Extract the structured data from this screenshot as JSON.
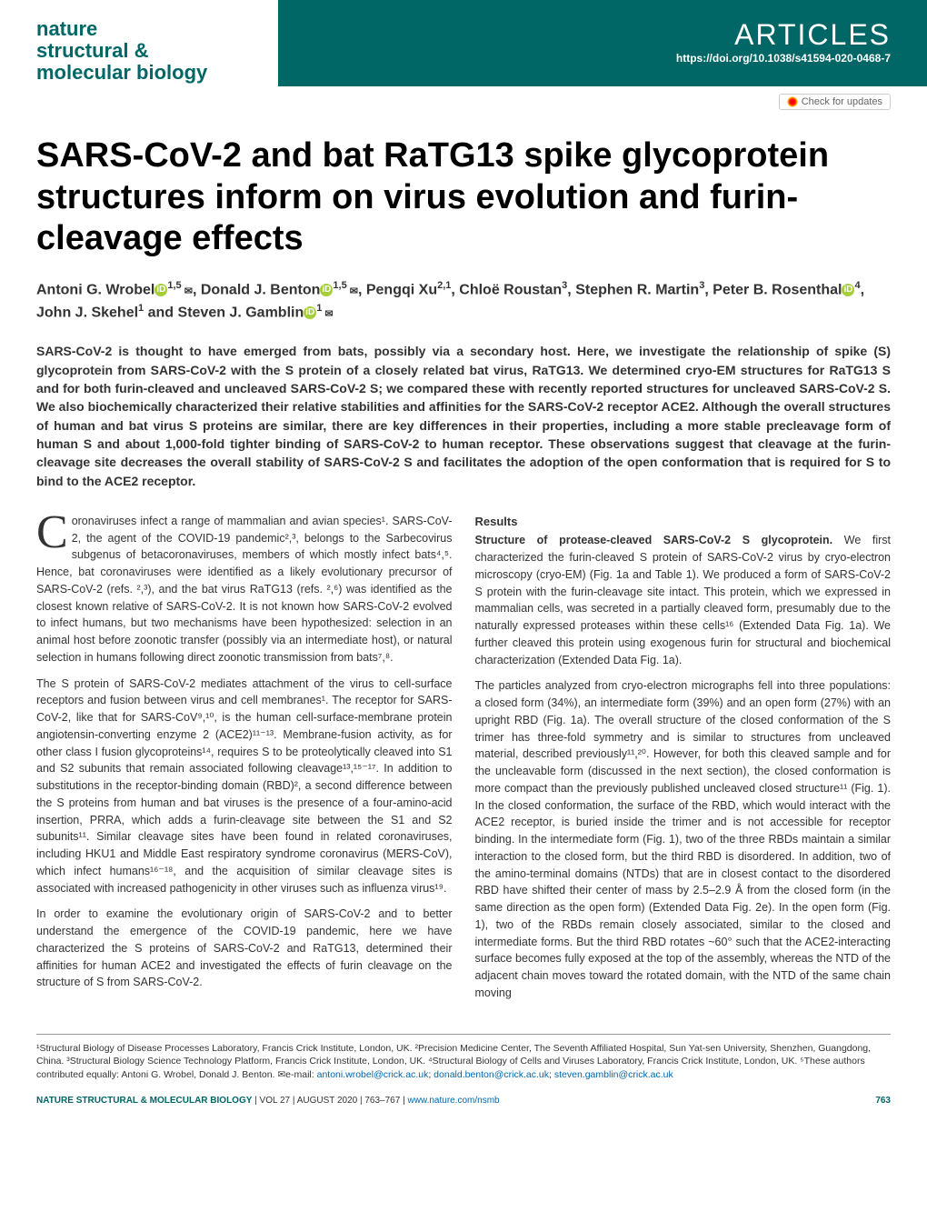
{
  "header": {
    "journal_name": "nature\nstructural &\nmolecular biology",
    "articles_label": "ARTICLES",
    "doi": "https://doi.org/10.1038/s41594-020-0468-7"
  },
  "check_updates_label": "Check for updates",
  "title": "SARS-CoV-2 and bat RaTG13 spike glycoprotein structures inform on virus evolution and furin-cleavage effects",
  "authors_html": "Antoni G. Wrobel",
  "authors": {
    "a1_name": "Antoni G. Wrobel",
    "a1_sup": "1,5",
    "a2_name": "Donald J. Benton",
    "a2_sup": "1,5",
    "a3_name": "Pengqi Xu",
    "a3_sup": "2,1",
    "a4_name": "Chloë Roustan",
    "a4_sup": "3",
    "a5_name": "Stephen R. Martin",
    "a5_sup": "3",
    "a6_name": "Peter B. Rosenthal",
    "a6_sup": "4",
    "a7_name": "John J. Skehel",
    "a7_sup": "1",
    "a8_name": "Steven J. Gamblin",
    "a8_sup": "1"
  },
  "abstract": "SARS-CoV-2 is thought to have emerged from bats, possibly via a secondary host. Here, we investigate the relationship of spike (S) glycoprotein from SARS-CoV-2 with the S protein of a closely related bat virus, RaTG13. We determined cryo-EM structures for RaTG13 S and for both furin-cleaved and uncleaved SARS-CoV-2 S; we compared these with recently reported structures for uncleaved SARS-CoV-2 S. We also biochemically characterized their relative stabilities and affinities for the SARS-CoV-2 receptor ACE2. Although the overall structures of human and bat virus S proteins are similar, there are key differences in their properties, including a more stable precleavage form of human S and about 1,000-fold tighter binding of SARS-CoV-2 to human receptor. These observations suggest that cleavage at the furin-cleavage site decreases the overall stability of SARS-CoV-2 S and facilitates the adoption of the open conformation that is required for S to bind to the ACE2 receptor.",
  "body": {
    "left_p1": "oronaviruses infect a range of mammalian and avian species¹. SARS-CoV-2, the agent of the COVID-19 pandemic²,³, belongs to the Sarbecovirus subgenus of betacoronaviruses, members of which mostly infect bats⁴,⁵. Hence, bat coronaviruses were identified as a likely evolutionary precursor of SARS-CoV-2 (refs. ²,³), and the bat virus RaTG13 (refs. ²,⁶) was identified as the closest known relative of SARS-CoV-2. It is not known how SARS-CoV-2 evolved to infect humans, but two mechanisms have been hypothesized: selection in an animal host before zoonotic transfer (possibly via an intermediate host), or natural selection in humans following direct zoonotic transmission from bats⁷,⁸.",
    "left_p2": "The S protein of SARS-CoV-2 mediates attachment of the virus to cell-surface receptors and fusion between virus and cell membranes¹. The receptor for SARS-CoV-2, like that for SARS-CoV⁹,¹⁰, is the human cell-surface-membrane protein angiotensin-converting enzyme 2 (ACE2)¹¹⁻¹³. Membrane-fusion activity, as for other class I fusion glycoproteins¹⁴, requires S to be proteolytically cleaved into S1 and S2 subunits that remain associated following cleavage¹³,¹⁵⁻¹⁷. In addition to substitutions in the receptor-binding domain (RBD)², a second difference between the S proteins from human and bat viruses is the presence of a four-amino-acid insertion, PRRA, which adds a furin-cleavage site between the S1 and S2 subunits¹¹. Similar cleavage sites have been found in related coronaviruses, including HKU1 and Middle East respiratory syndrome coronavirus (MERS-CoV), which infect humans¹⁶⁻¹⁸, and the acquisition of similar cleavage sites is associated with increased pathogenicity in other viruses such as influenza virus¹⁹.",
    "left_p3": "In order to examine the evolutionary origin of SARS-CoV-2 and to better understand the emergence of the COVID-19 pandemic, here we have characterized the S proteins of SARS-CoV-2 and RaTG13, determined their affinities for human ACE2 and investigated the effects of furin cleavage on the structure of S from SARS-CoV-2.",
    "results_heading": "Results",
    "right_p1_bold": "Structure of protease-cleaved SARS-CoV-2 S glycoprotein.",
    "right_p1": " We first characterized the furin-cleaved S protein of SARS-CoV-2 virus by cryo-electron microscopy (cryo-EM) (Fig. 1a and Table 1). We produced a form of SARS-CoV-2 S protein with the furin-cleavage site intact. This protein, which we expressed in mammalian cells, was secreted in a partially cleaved form, presumably due to the naturally expressed proteases within these cells¹⁶ (Extended Data Fig. 1a). We further cleaved this protein using exogenous furin for structural and biochemical characterization (Extended Data Fig. 1a).",
    "right_p2": "The particles analyzed from cryo-electron micrographs fell into three populations: a closed form (34%), an intermediate form (39%) and an open form (27%) with an upright RBD (Fig. 1a). The overall structure of the closed conformation of the S trimer has three-fold symmetry and is similar to structures from uncleaved material, described previously¹¹,²⁰. However, for both this cleaved sample and for the uncleavable form (discussed in the next section), the closed conformation is more compact than the previously published uncleaved closed structure¹¹ (Fig. 1). In the closed conformation, the surface of the RBD, which would interact with the ACE2 receptor, is buried inside the trimer and is not accessible for receptor binding. In the intermediate form (Fig. 1), two of the three RBDs maintain a similar interaction to the closed form, but the third RBD is disordered. In addition, two of the amino-terminal domains (NTDs) that are in closest contact to the disordered RBD have shifted their center of mass by 2.5–2.9 Å from the closed form (in the same direction as the open form) (Extended Data Fig. 2e). In the open form (Fig. 1), two of the RBDs remain closely associated, similar to the closed and intermediate forms. But the third RBD rotates ~60° such that the ACE2-interacting surface becomes fully exposed at the top of the assembly, whereas the NTD of the adjacent chain moves toward the rotated domain, with the NTD of the same chain moving"
  },
  "affiliations": "¹Structural Biology of Disease Processes Laboratory, Francis Crick Institute, London, UK. ²Precision Medicine Center, The Seventh Affiliated Hospital, Sun Yat-sen University, Shenzhen, Guangdong, China. ³Structural Biology Science Technology Platform, Francis Crick Institute, London, UK. ⁴Structural Biology of Cells and Viruses Laboratory, Francis Crick Institute, London, UK. ⁵These authors contributed equally: Antoni G. Wrobel, Donald J. Benton. ✉e-mail: ",
  "emails": {
    "e1": "antoni.wrobel@crick.ac.uk",
    "e2": "donald.benton@crick.ac.uk",
    "e3": "steven.gamblin@crick.ac.uk"
  },
  "footer": {
    "journal_caps": "NATURE STRUCTURAL & MOLECULAR BIOLOGY",
    "issue_info": " | VOL 27 | AUGUST 2020 | 763–767 | ",
    "url": "www.nature.com/nsmb",
    "page": "763"
  },
  "colors": {
    "brand": "#006666",
    "link": "#0066aa",
    "orcid": "#a6ce39"
  }
}
